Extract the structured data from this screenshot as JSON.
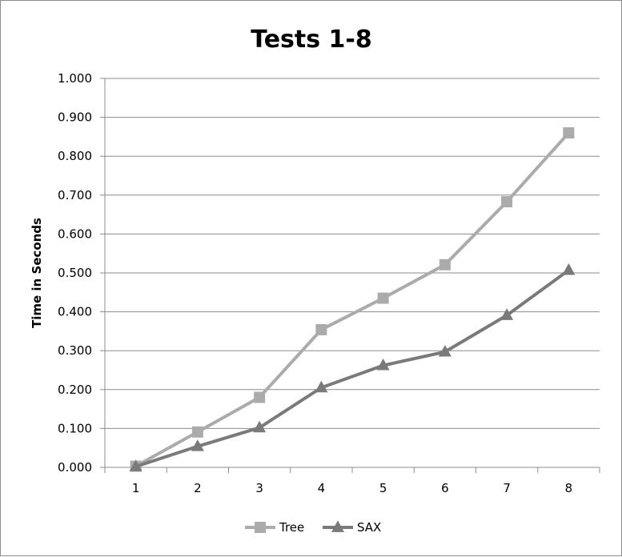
{
  "chart_data": {
    "type": "line",
    "title": "Tests 1-8",
    "xlabel": "",
    "ylabel": "Time in Seconds",
    "categories": [
      "1",
      "2",
      "3",
      "4",
      "5",
      "6",
      "7",
      "8"
    ],
    "ylim": [
      0,
      1
    ],
    "yticks": [
      "0.000",
      "0.100",
      "0.200",
      "0.300",
      "0.400",
      "0.500",
      "0.600",
      "0.700",
      "0.800",
      "0.900",
      "1.000"
    ],
    "grid": true,
    "legend": "bottom",
    "series": [
      {
        "name": "Tree",
        "marker": "square",
        "color": "#ababab",
        "values": [
          0.003,
          0.091,
          0.18,
          0.354,
          0.435,
          0.521,
          0.683,
          0.86
        ]
      },
      {
        "name": "SAX",
        "marker": "triangle",
        "color": "#7a7a7a",
        "values": [
          0.002,
          0.054,
          0.102,
          0.205,
          0.262,
          0.297,
          0.391,
          0.507
        ]
      }
    ]
  }
}
